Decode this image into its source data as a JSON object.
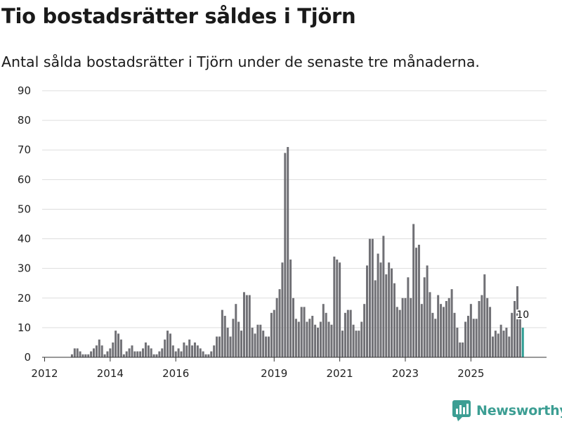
{
  "title": "Tio bostadsrätter såldes i Tjörn",
  "subtitle": "Antal sålda bostadsrätter i Tjörn under de senaste tre månaderna.",
  "brand": {
    "name": "Newsworthy",
    "color": "#3c9e93"
  },
  "colors": {
    "bar": "#707075",
    "highlight": "#2e9d93",
    "grid": "#dddddd",
    "axis": "#333333"
  },
  "chart_data": {
    "type": "bar",
    "x_start": {
      "year": 2012,
      "month": 1
    },
    "x_tick_labels": [
      "2012",
      "2014",
      "2016",
      "2019",
      "2021",
      "2023",
      "2025"
    ],
    "x_tick_years": [
      2012,
      2014,
      2016,
      2019,
      2021,
      2023,
      2025
    ],
    "ylim": [
      0,
      90
    ],
    "y_ticks": [
      0,
      10,
      20,
      30,
      40,
      50,
      60,
      70,
      80,
      90
    ],
    "highlight_last": true,
    "last_value_label": "10",
    "values": [
      0,
      0,
      0,
      0,
      0,
      0,
      0,
      0,
      0,
      0,
      1,
      3,
      3,
      2,
      1,
      1,
      1,
      2,
      3,
      4,
      6,
      4,
      1,
      2,
      3,
      5,
      9,
      8,
      6,
      1,
      2,
      3,
      4,
      2,
      2,
      2,
      3,
      5,
      4,
      3,
      1,
      1,
      2,
      3,
      6,
      9,
      8,
      4,
      2,
      3,
      2,
      5,
      4,
      6,
      4,
      5,
      4,
      3,
      2,
      1,
      1,
      2,
      4,
      7,
      7,
      16,
      14,
      10,
      7,
      13,
      18,
      12,
      9,
      22,
      21,
      21,
      10,
      8,
      11,
      11,
      9,
      7,
      7,
      15,
      16,
      20,
      23,
      32,
      69,
      71,
      33,
      20,
      13,
      12,
      17,
      17,
      12,
      13,
      14,
      11,
      10,
      12,
      18,
      15,
      12,
      11,
      34,
      33,
      32,
      9,
      15,
      16,
      16,
      11,
      9,
      9,
      12,
      18,
      31,
      40,
      40,
      26,
      35,
      32,
      41,
      28,
      32,
      30,
      25,
      17,
      16,
      20,
      20,
      27,
      20,
      45,
      37,
      38,
      18,
      27,
      31,
      22,
      15,
      13,
      21,
      18,
      17,
      19,
      20,
      23,
      15,
      10,
      5,
      5,
      12,
      14,
      18,
      13,
      13,
      19,
      21,
      28,
      20,
      17,
      7,
      9,
      8,
      11,
      9,
      10,
      7,
      15,
      19,
      24,
      14,
      10
    ]
  }
}
